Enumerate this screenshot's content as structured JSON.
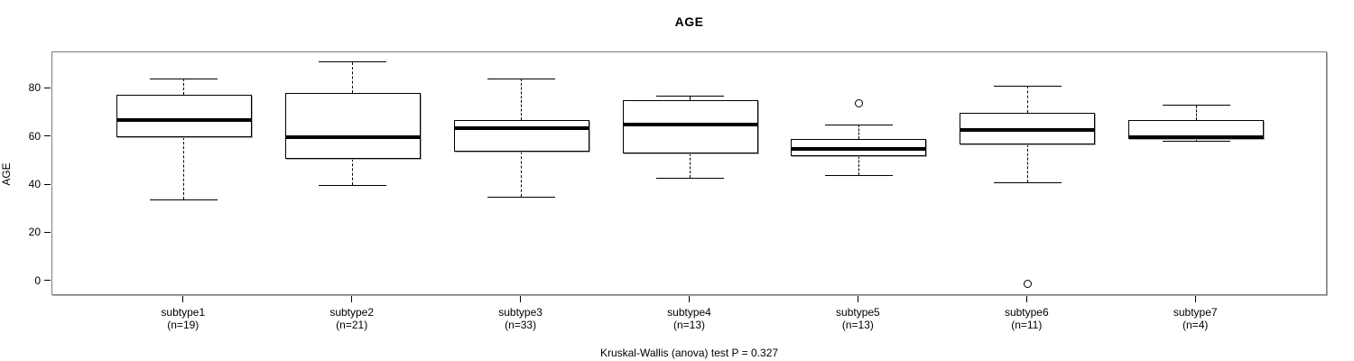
{
  "title": "AGE",
  "y_axis_label": "AGE",
  "footer_annotation": "Kruskal-Wallis (anova) test P = 0.327",
  "colors": {
    "foreground": "#000000",
    "background": "#ffffff",
    "frame_border": "#7a7a7a",
    "box_fill": "#ffffff",
    "box_border": "#000000",
    "median": "#000000"
  },
  "chart_data": {
    "type": "boxplot",
    "title": "AGE",
    "xlabel": "",
    "ylabel": "AGE",
    "ylim": [
      -6,
      95
    ],
    "yticks": [
      0,
      20,
      40,
      60,
      80
    ],
    "grid": false,
    "annotation": "Kruskal-Wallis (anova) test P = 0.327",
    "groups": [
      {
        "label": "subtype1",
        "n": 19,
        "label_n": "(n=19)",
        "whisker_low": 34,
        "q1": 60,
        "median": 67,
        "q3": 77.5,
        "whisker_high": 84,
        "outliers": []
      },
      {
        "label": "subtype2",
        "n": 21,
        "label_n": "(n=21)",
        "whisker_low": 40,
        "q1": 51,
        "median": 60,
        "q3": 78,
        "whisker_high": 91,
        "outliers": []
      },
      {
        "label": "subtype3",
        "n": 33,
        "label_n": "(n=33)",
        "whisker_low": 35,
        "q1": 54,
        "median": 63.5,
        "q3": 67,
        "whisker_high": 84,
        "outliers": []
      },
      {
        "label": "subtype4",
        "n": 13,
        "label_n": "(n=13)",
        "whisker_low": 43,
        "q1": 53,
        "median": 65,
        "q3": 75,
        "whisker_high": 77,
        "outliers": []
      },
      {
        "label": "subtype5",
        "n": 13,
        "label_n": "(n=13)",
        "whisker_low": 44,
        "q1": 52,
        "median": 55,
        "q3": 59,
        "whisker_high": 65,
        "outliers": [
          74
        ]
      },
      {
        "label": "subtype6",
        "n": 11,
        "label_n": "(n=11)",
        "whisker_low": 41,
        "q1": 57,
        "median": 63,
        "q3": 70,
        "whisker_high": 81,
        "outliers": [
          -1
        ]
      },
      {
        "label": "subtype7",
        "n": 4,
        "label_n": "(n=4)",
        "whisker_low": 58,
        "q1": 59,
        "median": 60,
        "q3": 67,
        "whisker_high": 73,
        "outliers": []
      }
    ]
  }
}
